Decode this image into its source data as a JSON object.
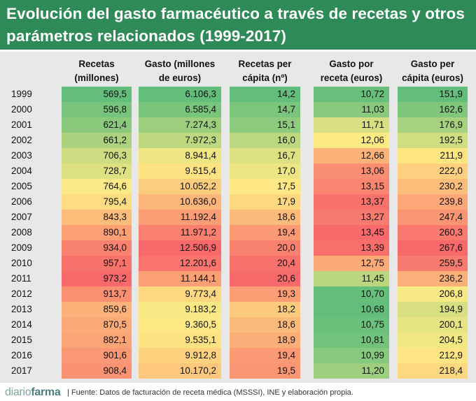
{
  "title": "Evolución del gasto farmacéutico a través de recetas y otros parámetros relacionados (1999-2017)",
  "chart_data": {
    "type": "table",
    "columns": [
      {
        "line1": "Recetas",
        "line2": "(millones)"
      },
      {
        "line1": "Gasto (millones",
        "line2": "de euros)"
      },
      {
        "line1": "Recetas per",
        "line2": "cápita (nº)"
      },
      {
        "line1": "Gasto por",
        "line2": "receta (euros)"
      },
      {
        "line1": "Gasto per",
        "line2": "cápita (euros)"
      }
    ],
    "years": [
      "1999",
      "2000",
      "2001",
      "2002",
      "2003",
      "2004",
      "2005",
      "2006",
      "2007",
      "2008",
      "2009",
      "2010",
      "2011",
      "2012",
      "2013",
      "2014",
      "2015",
      "2016",
      "2017"
    ],
    "display": [
      [
        "569,5",
        "596,8",
        "621,4",
        "661,2",
        "706,3",
        "728,7",
        "764,6",
        "795,4",
        "843,3",
        "890,1",
        "934,0",
        "957,1",
        "973,2",
        "913,7",
        "859,6",
        "870,5",
        "882,1",
        "901,6",
        "908,4"
      ],
      [
        "6.106,3",
        "6.585,4",
        "7.274,3",
        "7.972,3",
        "8.941,4",
        "9.515,4",
        "10.052,2",
        "10.636,0",
        "11.192,4",
        "11.971,2",
        "12.506,9",
        "12.201,6",
        "11.144,1",
        "9.773,4",
        "9.183,2",
        "9.360,5",
        "9.535,1",
        "9.912,8",
        "10.170,2"
      ],
      [
        "14,2",
        "14,7",
        "15,1",
        "16,0",
        "16,7",
        "17,0",
        "17,5",
        "17,9",
        "18,6",
        "19,4",
        "20,0",
        "20,4",
        "20,6",
        "19,3",
        "18,2",
        "18,6",
        "18,9",
        "19,4",
        "19,5"
      ],
      [
        "10,72",
        "11,03",
        "11,71",
        "12,06",
        "12,66",
        "13,06",
        "13,15",
        "13,37",
        "13,27",
        "13,45",
        "13,39",
        "12,75",
        "11,45",
        "10,70",
        "10,68",
        "10,75",
        "10,81",
        "10,99",
        "11,20"
      ],
      [
        "151,9",
        "162,6",
        "176,9",
        "192,5",
        "211,9",
        "222,0",
        "230,2",
        "239,8",
        "247,4",
        "260,3",
        "267,6",
        "259,5",
        "236,2",
        "206,8",
        "194,9",
        "200,1",
        "204,5",
        "212,9",
        "218,4"
      ]
    ],
    "values": [
      [
        569.5,
        596.8,
        621.4,
        661.2,
        706.3,
        728.7,
        764.6,
        795.4,
        843.3,
        890.1,
        934.0,
        957.1,
        973.2,
        913.7,
        859.6,
        870.5,
        882.1,
        901.6,
        908.4
      ],
      [
        6106.3,
        6585.4,
        7274.3,
        7972.3,
        8941.4,
        9515.4,
        10052.2,
        10636.0,
        11192.4,
        11971.2,
        12506.9,
        12201.6,
        11144.1,
        9773.4,
        9183.2,
        9360.5,
        9535.1,
        9912.8,
        10170.2
      ],
      [
        14.2,
        14.7,
        15.1,
        16.0,
        16.7,
        17.0,
        17.5,
        17.9,
        18.6,
        19.4,
        20.0,
        20.4,
        20.6,
        19.3,
        18.2,
        18.6,
        18.9,
        19.4,
        19.5
      ],
      [
        10.72,
        11.03,
        11.71,
        12.06,
        12.66,
        13.06,
        13.15,
        13.37,
        13.27,
        13.45,
        13.39,
        12.75,
        11.45,
        10.7,
        10.68,
        10.75,
        10.81,
        10.99,
        11.2
      ],
      [
        151.9,
        162.6,
        176.9,
        192.5,
        211.9,
        222.0,
        230.2,
        239.8,
        247.4,
        260.3,
        267.6,
        259.5,
        236.2,
        206.8,
        194.9,
        200.1,
        204.5,
        212.9,
        218.4
      ]
    ],
    "color_scale": [
      "#63be7b",
      "#ffeb84",
      "#f8696b"
    ]
  },
  "footer": {
    "brand_part1": "diario",
    "brand_part2": "farma",
    "source": "| Fuente: Datos de facturación de receta médica (MSSSI), INE y elaboración propia."
  }
}
